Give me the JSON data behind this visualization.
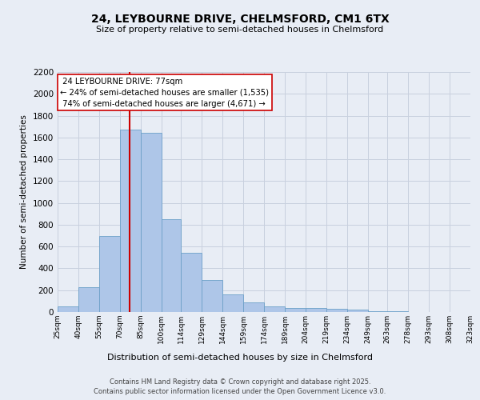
{
  "title_line1": "24, LEYBOURNE DRIVE, CHELMSFORD, CM1 6TX",
  "title_line2": "Size of property relative to semi-detached houses in Chelmsford",
  "xlabel": "Distribution of semi-detached houses by size in Chelmsford",
  "ylabel": "Number of semi-detached properties",
  "bar_edges": [
    25,
    40,
    55,
    70,
    85,
    100,
    114,
    129,
    144,
    159,
    174,
    189,
    204,
    219,
    234,
    249,
    263,
    278,
    293,
    308,
    323
  ],
  "bar_heights": [
    50,
    230,
    700,
    1670,
    1640,
    850,
    540,
    290,
    160,
    90,
    50,
    40,
    40,
    30,
    20,
    10,
    5,
    3,
    2,
    2
  ],
  "bar_color": "#aec6e8",
  "bar_edge_color": "#6ca0c8",
  "property_size": 77,
  "property_label": "24 LEYBOURNE DRIVE: 77sqm",
  "pct_smaller": "24% of semi-detached houses are smaller (1,535)",
  "pct_larger": "74% of semi-detached houses are larger (4,671)",
  "vline_color": "#cc0000",
  "annotation_box_edge_color": "#cc0000",
  "ylim": [
    0,
    2200
  ],
  "yticks": [
    0,
    200,
    400,
    600,
    800,
    1000,
    1200,
    1400,
    1600,
    1800,
    2000,
    2200
  ],
  "grid_color": "#c8d0de",
  "bg_color": "#e8edf5",
  "footnote1": "Contains HM Land Registry data © Crown copyright and database right 2025.",
  "footnote2": "Contains public sector information licensed under the Open Government Licence v3.0."
}
